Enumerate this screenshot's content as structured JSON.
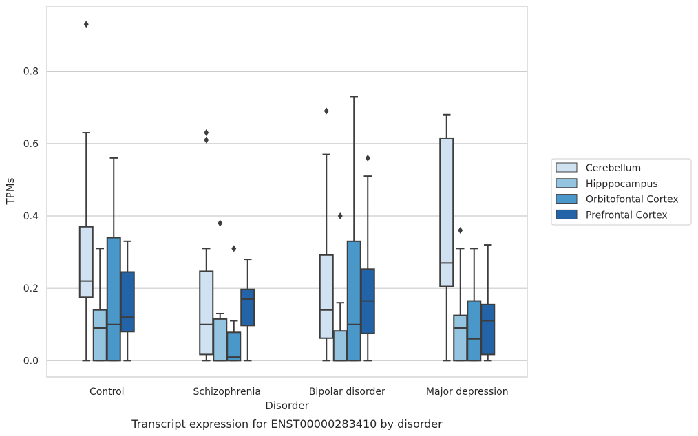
{
  "chart_data": {
    "type": "box",
    "title": "",
    "caption": "Transcript expression for ENST00000283410 by disorder",
    "xlabel": "Disorder",
    "ylabel": "TPMs",
    "ylim": [
      -0.045,
      0.98
    ],
    "yticks": [
      0.0,
      0.2,
      0.4,
      0.6,
      0.8
    ],
    "ytick_labels": [
      "0.0",
      "0.2",
      "0.4",
      "0.6",
      "0.8"
    ],
    "grid": "horizontal",
    "legend_position": "right",
    "categories": [
      "Control",
      "Schizophrenia",
      "Bipolar disorder",
      "Major depression"
    ],
    "series": [
      {
        "name": "Cerebellum",
        "color": "#d0e1f2",
        "boxes": [
          {
            "whisker_low": 0.0,
            "q1": 0.175,
            "median": 0.22,
            "q3": 0.37,
            "whisker_high": 0.63,
            "outliers": [
              0.93
            ]
          },
          {
            "whisker_low": 0.0,
            "q1": 0.017,
            "median": 0.1,
            "q3": 0.247,
            "whisker_high": 0.31,
            "outliers": [
              0.61,
              0.63
            ]
          },
          {
            "whisker_low": 0.0,
            "q1": 0.062,
            "median": 0.14,
            "q3": 0.292,
            "whisker_high": 0.57,
            "outliers": [
              0.69
            ]
          },
          {
            "whisker_low": 0.0,
            "q1": 0.205,
            "median": 0.27,
            "q3": 0.615,
            "whisker_high": 0.68,
            "outliers": []
          }
        ]
      },
      {
        "name": "Hipppocampus",
        "color": "#94c4df",
        "boxes": [
          {
            "whisker_low": 0.0,
            "q1": 0.0,
            "median": 0.09,
            "q3": 0.14,
            "whisker_high": 0.31,
            "outliers": []
          },
          {
            "whisker_low": 0.0,
            "q1": 0.0,
            "median": 0.0,
            "q3": 0.115,
            "whisker_high": 0.13,
            "outliers": [
              0.38
            ]
          },
          {
            "whisker_low": 0.0,
            "q1": 0.0,
            "median": 0.0,
            "q3": 0.082,
            "whisker_high": 0.16,
            "outliers": [
              0.4
            ]
          },
          {
            "whisker_low": 0.0,
            "q1": 0.0,
            "median": 0.09,
            "q3": 0.125,
            "whisker_high": 0.31,
            "outliers": [
              0.36
            ]
          }
        ]
      },
      {
        "name": "Orbitofontal Cortex",
        "color": "#4a98c9",
        "boxes": [
          {
            "whisker_low": 0.0,
            "q1": 0.0,
            "median": 0.1,
            "q3": 0.34,
            "whisker_high": 0.56,
            "outliers": []
          },
          {
            "whisker_low": 0.0,
            "q1": 0.0,
            "median": 0.01,
            "q3": 0.078,
            "whisker_high": 0.11,
            "outliers": [
              0.31
            ]
          },
          {
            "whisker_low": 0.0,
            "q1": 0.0,
            "median": 0.1,
            "q3": 0.33,
            "whisker_high": 0.73,
            "outliers": []
          },
          {
            "whisker_low": 0.0,
            "q1": 0.0,
            "median": 0.06,
            "q3": 0.165,
            "whisker_high": 0.31,
            "outliers": []
          }
        ]
      },
      {
        "name": "Prefrontal Cortex",
        "color": "#2363a8",
        "boxes": [
          {
            "whisker_low": 0.0,
            "q1": 0.08,
            "median": 0.12,
            "q3": 0.245,
            "whisker_high": 0.33,
            "outliers": []
          },
          {
            "whisker_low": 0.0,
            "q1": 0.097,
            "median": 0.17,
            "q3": 0.197,
            "whisker_high": 0.28,
            "outliers": []
          },
          {
            "whisker_low": 0.0,
            "q1": 0.075,
            "median": 0.165,
            "q3": 0.253,
            "whisker_high": 0.51,
            "outliers": [
              0.56
            ]
          },
          {
            "whisker_low": 0.0,
            "q1": 0.017,
            "median": 0.11,
            "q3": 0.155,
            "whisker_high": 0.32,
            "outliers": []
          }
        ]
      }
    ]
  }
}
